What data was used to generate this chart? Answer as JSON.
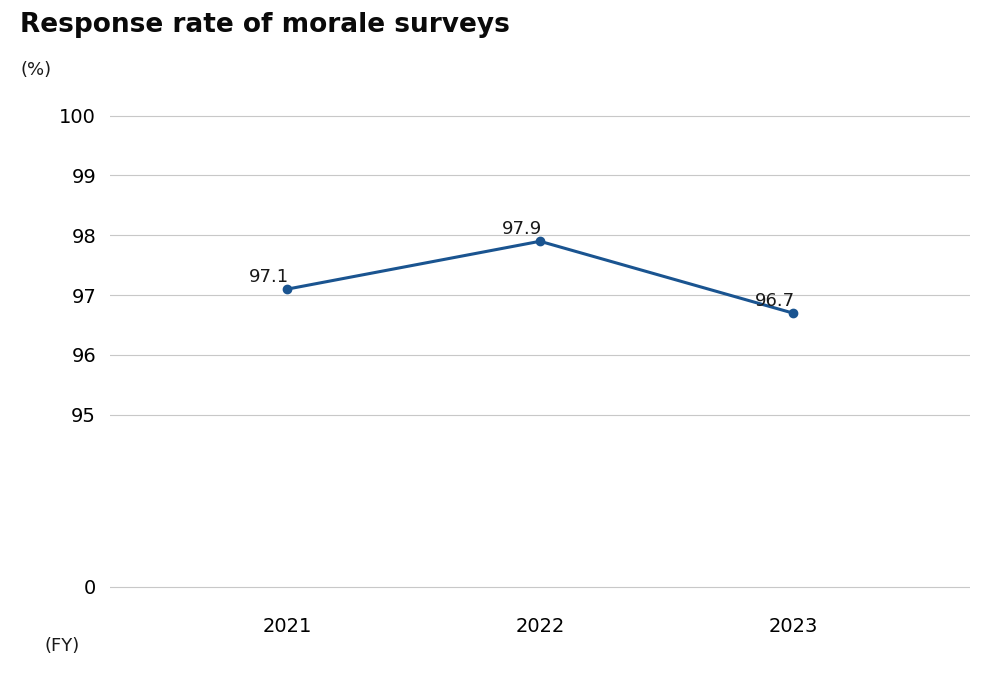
{
  "title": "Response rate of morale surveys",
  "ylabel": "(%)",
  "xlabel": "(FY)",
  "x": [
    2021,
    2022,
    2023
  ],
  "y": [
    97.1,
    97.9,
    96.7
  ],
  "labels": [
    "97.1",
    "97.9",
    "96.7"
  ],
  "line_color": "#1a5490",
  "marker_color": "#1a5490",
  "marker_size": 6,
  "line_width": 2.2,
  "yticks_upper": [
    95,
    96,
    97,
    98,
    99,
    100
  ],
  "yticks_lower": [
    0
  ],
  "background_color": "#ffffff",
  "grid_color": "#c8c8c8",
  "title_fontsize": 19,
  "label_fontsize": 13,
  "tick_fontsize": 14,
  "annotation_fontsize": 13
}
